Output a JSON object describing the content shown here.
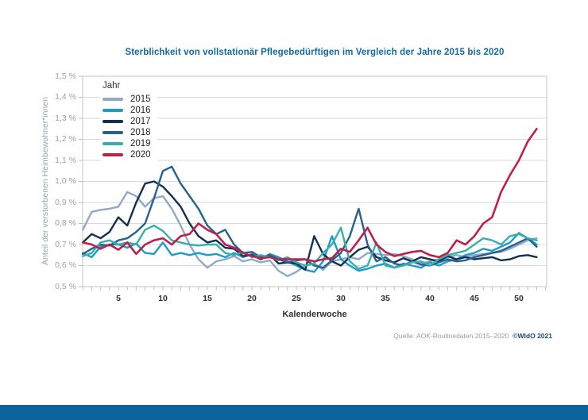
{
  "footer": {
    "source": "Quelle: AOK-Routinedaten 2015–2020",
    "brand": "©WIdO 2021"
  },
  "colors": {
    "title": "#0f6ba3",
    "footer_brand": "#1d4670",
    "bottom_bar": "#0d639c",
    "grid": "#d9d9d9",
    "frame": "#c4c6ca",
    "tick": "#b9bcc2"
  },
  "chart_data": {
    "type": "line",
    "title": "Sterblichkeit von vollstationär Pflegebedürftigen im Vergleich der Jahre 2015 bis 2020",
    "xlabel": "Kalenderwoche",
    "ylabel": "Anteil der verstorbenen Heimbewohner*innen",
    "legend_title": "Jahr",
    "legend_position": "top-left-inside",
    "grid": "horizontal",
    "xlim": [
      1,
      53
    ],
    "ylim": [
      0.5,
      1.5
    ],
    "x_ticks": [
      5,
      10,
      15,
      20,
      25,
      30,
      35,
      40,
      45,
      50
    ],
    "y_tick_labels": [
      "1,5 %",
      "1,4 %",
      "1,3 %",
      "1,2 %",
      "1,1 %",
      "1,0 %",
      "0,9 %",
      "0,8 %",
      "0,7 %",
      "0,6 %",
      "0,5 %"
    ],
    "y_unit": "%",
    "x": [
      1,
      2,
      3,
      4,
      5,
      6,
      7,
      8,
      9,
      10,
      11,
      12,
      13,
      14,
      15,
      16,
      17,
      18,
      19,
      20,
      21,
      22,
      23,
      24,
      25,
      26,
      27,
      28,
      29,
      30,
      31,
      32,
      33,
      34,
      35,
      36,
      37,
      38,
      39,
      40,
      41,
      42,
      43,
      44,
      45,
      46,
      47,
      48,
      49,
      50,
      51,
      52
    ],
    "series": [
      {
        "name": "2015",
        "color": "#91a8c6",
        "values": [
          0.77,
          0.855,
          0.865,
          0.87,
          0.88,
          0.95,
          0.93,
          0.88,
          0.92,
          0.93,
          0.87,
          0.79,
          0.7,
          0.63,
          0.59,
          0.62,
          0.63,
          0.645,
          0.62,
          0.63,
          0.615,
          0.625,
          0.575,
          0.55,
          0.57,
          0.6,
          0.61,
          0.58,
          0.62,
          0.63,
          0.64,
          0.63,
          0.66,
          0.655,
          0.65,
          0.655,
          0.645,
          0.63,
          0.61,
          0.62,
          0.63,
          0.64,
          0.65,
          0.64,
          0.65,
          0.655,
          0.66,
          0.665,
          0.68,
          0.7,
          0.72,
          0.73
        ]
      },
      {
        "name": "2016",
        "color": "#1f9bc9",
        "values": [
          0.66,
          0.64,
          0.69,
          0.7,
          0.7,
          0.685,
          0.705,
          0.66,
          0.655,
          0.71,
          0.65,
          0.66,
          0.65,
          0.66,
          0.65,
          0.655,
          0.64,
          0.66,
          0.64,
          0.655,
          0.63,
          0.655,
          0.64,
          0.62,
          0.6,
          0.58,
          0.57,
          0.62,
          0.74,
          0.63,
          0.6,
          0.575,
          0.585,
          0.6,
          0.61,
          0.59,
          0.61,
          0.6,
          0.59,
          0.615,
          0.6,
          0.62,
          0.63,
          0.65,
          0.66,
          0.68,
          0.67,
          0.69,
          0.71,
          0.755,
          0.73,
          0.7
        ]
      },
      {
        "name": "2017",
        "color": "#12314f",
        "values": [
          0.71,
          0.75,
          0.73,
          0.76,
          0.83,
          0.79,
          0.9,
          0.99,
          1.0,
          0.975,
          0.93,
          0.88,
          0.8,
          0.74,
          0.71,
          0.72,
          0.685,
          0.68,
          0.645,
          0.65,
          0.63,
          0.65,
          0.61,
          0.615,
          0.61,
          0.58,
          0.74,
          0.655,
          0.62,
          0.6,
          0.64,
          0.675,
          0.69,
          0.64,
          0.625,
          0.615,
          0.635,
          0.62,
          0.64,
          0.63,
          0.62,
          0.645,
          0.63,
          0.64,
          0.63,
          0.635,
          0.64,
          0.625,
          0.63,
          0.645,
          0.65,
          0.64
        ]
      },
      {
        "name": "2018",
        "color": "#26618f",
        "values": [
          0.655,
          0.68,
          0.7,
          0.695,
          0.72,
          0.73,
          0.76,
          0.8,
          0.92,
          1.05,
          1.07,
          0.99,
          0.93,
          0.87,
          0.79,
          0.75,
          0.77,
          0.7,
          0.66,
          0.665,
          0.64,
          0.65,
          0.63,
          0.615,
          0.625,
          0.63,
          0.6,
          0.59,
          0.625,
          0.66,
          0.74,
          0.87,
          0.7,
          0.62,
          0.64,
          0.61,
          0.6,
          0.62,
          0.605,
          0.6,
          0.615,
          0.63,
          0.62,
          0.625,
          0.64,
          0.65,
          0.66,
          0.67,
          0.69,
          0.71,
          0.73,
          0.69
        ]
      },
      {
        "name": "2019",
        "color": "#35b0ab",
        "values": [
          0.645,
          0.66,
          0.71,
          0.72,
          0.7,
          0.71,
          0.7,
          0.77,
          0.79,
          0.765,
          0.72,
          0.71,
          0.7,
          0.695,
          0.7,
          0.7,
          0.66,
          0.65,
          0.665,
          0.64,
          0.65,
          0.64,
          0.625,
          0.64,
          0.615,
          0.6,
          0.61,
          0.66,
          0.7,
          0.78,
          0.62,
          0.585,
          0.6,
          0.71,
          0.6,
          0.59,
          0.6,
          0.615,
          0.62,
          0.6,
          0.63,
          0.65,
          0.66,
          0.67,
          0.7,
          0.73,
          0.72,
          0.7,
          0.74,
          0.75,
          0.73,
          0.72
        ]
      },
      {
        "name": "2020",
        "color": "#bd204b",
        "values": [
          0.71,
          0.7,
          0.68,
          0.7,
          0.675,
          0.71,
          0.655,
          0.7,
          0.72,
          0.73,
          0.7,
          0.74,
          0.75,
          0.8,
          0.77,
          0.75,
          0.7,
          0.685,
          0.66,
          0.645,
          0.635,
          0.64,
          0.63,
          0.63,
          0.63,
          0.63,
          0.62,
          0.63,
          0.635,
          0.68,
          0.665,
          0.72,
          0.78,
          0.7,
          0.665,
          0.645,
          0.655,
          0.665,
          0.67,
          0.65,
          0.64,
          0.66,
          0.72,
          0.7,
          0.74,
          0.8,
          0.83,
          0.95,
          1.03,
          1.1,
          1.19,
          1.25
        ]
      }
    ]
  }
}
